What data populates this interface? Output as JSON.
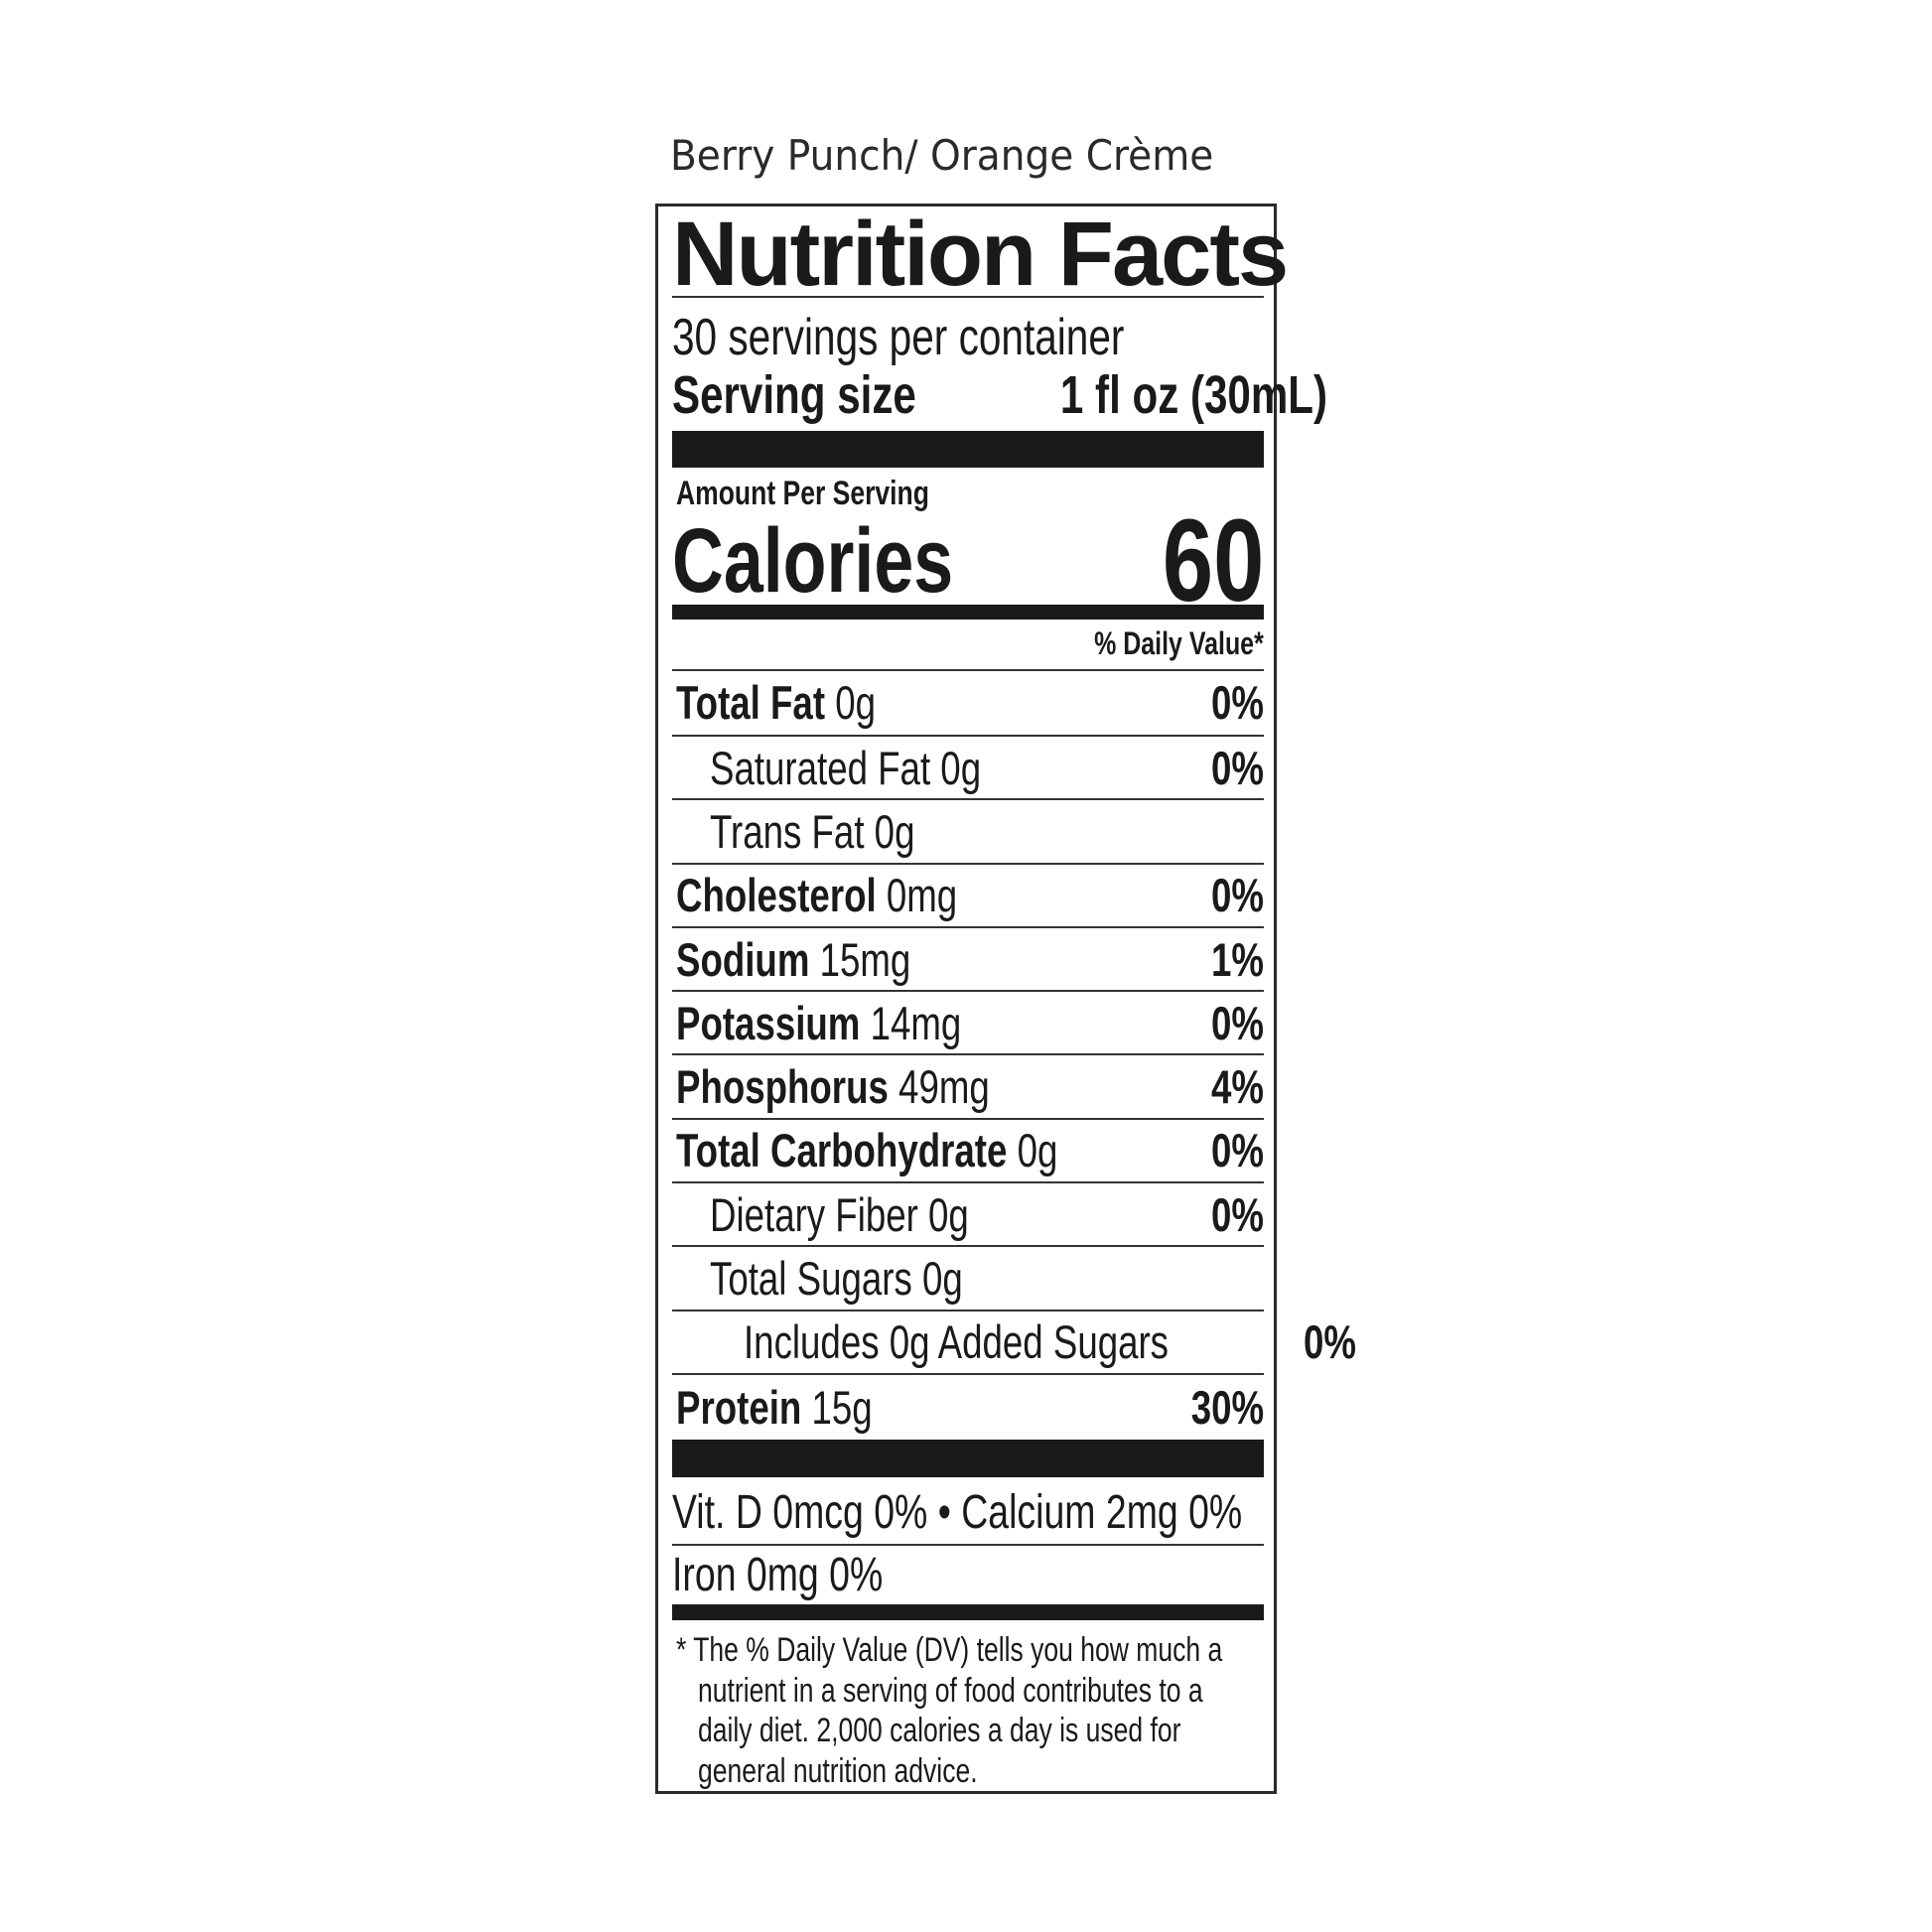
{
  "flavor": "Berry Punch/ Orange Crème",
  "title": "Nutrition Facts",
  "servings_per_container": "30 servings per container",
  "serving_size_label": "Serving size",
  "serving_size_value": "1 fl oz (30mL)",
  "amount_per_serving": "Amount Per Serving",
  "calories_label": "Calories",
  "calories_value": "60",
  "daily_value_header": "% Daily Value*",
  "nutrients": [
    {
      "label": "Total Fat",
      "amount": "0g",
      "dv": "0%",
      "indent": 0
    },
    {
      "label": "Saturated Fat 0g",
      "amount": "",
      "dv": "0%",
      "indent": 1
    },
    {
      "label": "Trans Fat 0g",
      "amount": "",
      "dv": "",
      "indent": 1
    },
    {
      "label": "Cholesterol",
      "amount": "0mg",
      "dv": "0%",
      "indent": 0
    },
    {
      "label": "Sodium",
      "amount": "15mg",
      "dv": "1%",
      "indent": 0
    },
    {
      "label": "Potassium",
      "amount": "14mg",
      "dv": "0%",
      "indent": 0
    },
    {
      "label": "Phosphorus",
      "amount": "49mg",
      "dv": "4%",
      "indent": 0
    },
    {
      "label": "Total Carbohydrate",
      "amount": "0g",
      "dv": "0%",
      "indent": 0
    },
    {
      "label": "Dietary Fiber 0g",
      "amount": "",
      "dv": "0%",
      "indent": 1
    },
    {
      "label": "Total Sugars 0g",
      "amount": "",
      "dv": "",
      "indent": 1
    },
    {
      "label": "Includes 0g Added Sugars",
      "amount": "",
      "dv": "0%",
      "indent": 2
    },
    {
      "label": "Protein",
      "amount": "15g",
      "dv": "30%",
      "indent": 0
    }
  ],
  "vitamins_line1": "Vit. D 0mcg 0% • Calcium 2mg 0%",
  "vitamins_line2": "Iron 0mg  0%",
  "footnote": [
    "* The % Daily Value (DV) tells you how much a",
    "nutrient in a serving of food contributes to a",
    "daily diet. 2,000 calories a day is used for",
    "general nutrition advice."
  ]
}
